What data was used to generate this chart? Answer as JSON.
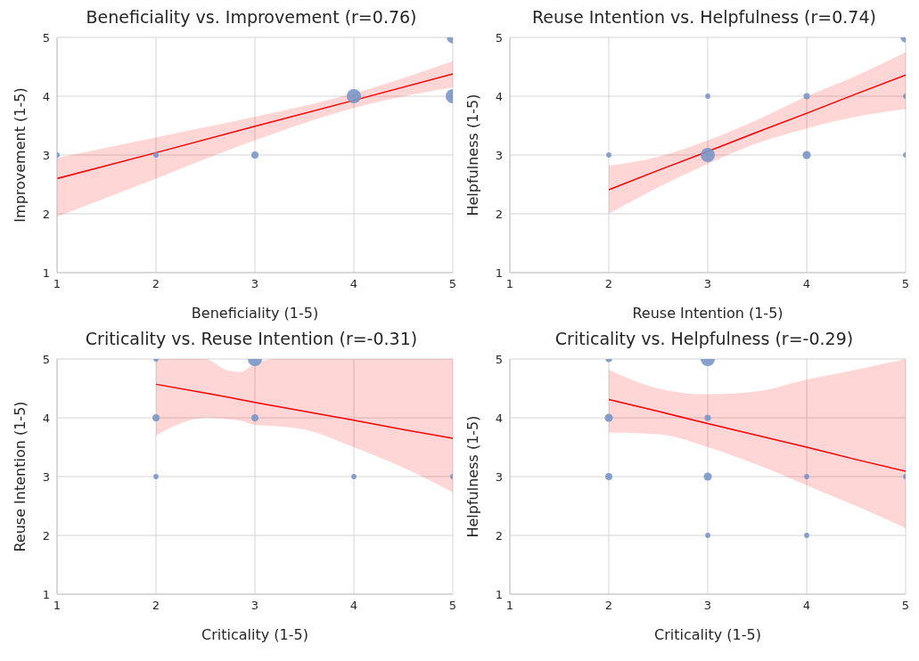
{
  "chart_data": [
    {
      "type": "bubble",
      "title": "Beneficiality vs. Improvement (r=0.76)",
      "xlabel": "Beneficiality (1-5)",
      "ylabel": "Improvement (1-5)",
      "xlim": [
        1,
        5
      ],
      "ylim": [
        1,
        5
      ],
      "xticks": [
        1,
        2,
        3,
        4,
        5
      ],
      "yticks": [
        1,
        2,
        3,
        4,
        5
      ],
      "grid": true,
      "series": [
        {
          "type": "bubble",
          "color": "#7b96c6",
          "x": [
            1,
            2,
            3,
            4,
            5,
            5
          ],
          "values": [
            3,
            3,
            3,
            4,
            5,
            4
          ],
          "sizes": [
            0.14,
            0.14,
            0.25,
            1,
            0.7,
            1
          ]
        },
        {
          "type": "line",
          "color": "#ff0000",
          "x": [
            1,
            2,
            3,
            4,
            5
          ],
          "values": [
            2.6,
            3.04,
            3.49,
            3.93,
            4.38
          ],
          "lower": [
            1.95,
            2.6,
            3.25,
            3.8,
            4.15
          ],
          "upper": [
            2.95,
            3.3,
            3.65,
            4.05,
            4.6
          ]
        }
      ]
    },
    {
      "type": "bubble",
      "title": "Reuse Intention vs. Helpfulness (r=0.74)",
      "xlabel": "Reuse Intention (1-5)",
      "ylabel": "Helpfulness (1-5)",
      "xlim": [
        1,
        5
      ],
      "ylim": [
        1,
        5
      ],
      "xticks": [
        1,
        2,
        3,
        4,
        5
      ],
      "yticks": [
        1,
        2,
        3,
        4,
        5
      ],
      "grid": true,
      "series": [
        {
          "type": "bubble",
          "color": "#7b96c6",
          "x": [
            2,
            3,
            3,
            4,
            4,
            5,
            5,
            5
          ],
          "values": [
            3,
            4,
            3,
            4,
            3,
            5,
            4,
            3
          ],
          "sizes": [
            0.13,
            0.13,
            1,
            0.2,
            0.33,
            0.5,
            0.13,
            0.13
          ]
        },
        {
          "type": "line",
          "color": "#ff0000",
          "x": [
            2,
            2.5,
            3,
            3.5,
            4,
            4.5,
            5
          ],
          "values": [
            2.41,
            2.74,
            3.06,
            3.39,
            3.71,
            4.04,
            4.36
          ],
          "lower": [
            2.0,
            2.45,
            2.85,
            3.2,
            3.45,
            3.65,
            3.78
          ],
          "upper": [
            2.82,
            2.97,
            3.25,
            3.6,
            4.0,
            4.35,
            4.75
          ]
        }
      ]
    },
    {
      "type": "bubble",
      "title": "Criticality vs. Reuse Intention (r=-0.31)",
      "xlabel": "Criticality (1-5)",
      "ylabel": "Reuse Intention (1-5)",
      "xlim": [
        1,
        5
      ],
      "ylim": [
        1,
        5
      ],
      "xticks": [
        1,
        2,
        3,
        4,
        5
      ],
      "yticks": [
        1,
        2,
        3,
        4,
        5
      ],
      "grid": true,
      "series": [
        {
          "type": "bubble",
          "color": "#7b96c6",
          "x": [
            2,
            3,
            2,
            3,
            2,
            4,
            5
          ],
          "values": [
            5,
            5,
            4,
            4,
            3,
            3,
            3
          ],
          "sizes": [
            0.13,
            1,
            0.25,
            0.25,
            0.13,
            0.13,
            0.13
          ]
        },
        {
          "type": "line",
          "color": "#ff0000",
          "x": [
            2,
            2.5,
            2.7,
            2.85,
            3,
            3.2,
            3.5,
            4,
            4.5,
            5
          ],
          "values": [
            4.57,
            4.42,
            4.36,
            4.31,
            4.26,
            4.2,
            4.11,
            3.96,
            3.8,
            3.65
          ],
          "lower": [
            3.7,
            4.0,
            3.98,
            3.95,
            3.88,
            3.86,
            3.8,
            3.5,
            3.15,
            2.73
          ],
          "upper": [
            5,
            5,
            4.82,
            4.78,
            4.92,
            5,
            5,
            5,
            5,
            5
          ]
        }
      ]
    },
    {
      "type": "bubble",
      "title": "Criticality vs. Helpfulness (r=-0.29)",
      "xlabel": "Criticality (1-5)",
      "ylabel": "Helpfulness (1-5)",
      "xlim": [
        1,
        5
      ],
      "ylim": [
        1,
        5
      ],
      "xticks": [
        1,
        2,
        3,
        4,
        5
      ],
      "yticks": [
        1,
        2,
        3,
        4,
        5
      ],
      "grid": true,
      "series": [
        {
          "type": "bubble",
          "color": "#7b96c6",
          "x": [
            2,
            3,
            2,
            3,
            2,
            3,
            3,
            4,
            4,
            5
          ],
          "values": [
            5,
            5,
            4,
            4,
            3,
            3,
            2,
            2,
            3,
            3
          ],
          "sizes": [
            0.2,
            1,
            0.33,
            0.2,
            0.25,
            0.33,
            0.13,
            0.13,
            0.13,
            0.13
          ]
        },
        {
          "type": "line",
          "color": "#ff0000",
          "x": [
            2,
            2.5,
            3,
            3.5,
            4,
            4.5,
            5
          ],
          "values": [
            4.31,
            4.11,
            3.9,
            3.7,
            3.5,
            3.29,
            3.09
          ],
          "lower": [
            3.75,
            3.72,
            3.5,
            3.2,
            2.85,
            2.5,
            2.12
          ],
          "upper": [
            4.82,
            4.5,
            4.4,
            4.45,
            4.65,
            4.82,
            5
          ]
        }
      ]
    }
  ]
}
